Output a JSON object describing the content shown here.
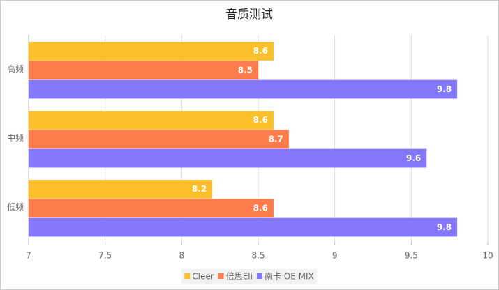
{
  "chart_data": {
    "type": "hbar",
    "title": "音质测试",
    "categories": [
      "高频",
      "中频",
      "低频"
    ],
    "series": [
      {
        "name": "Cleer",
        "color": "#fbbf2b",
        "values": [
          8.6,
          8.6,
          8.2
        ]
      },
      {
        "name": "倍思Eli",
        "color": "#ff7c4d",
        "values": [
          8.5,
          8.7,
          8.6
        ]
      },
      {
        "name": "南卡 OE MIX",
        "color": "#8477fb",
        "values": [
          9.8,
          9.6,
          9.8
        ]
      }
    ],
    "xlim": [
      7,
      10
    ],
    "xticks": [
      7,
      7.5,
      8,
      8.5,
      9,
      9.5,
      10
    ],
    "grid": true,
    "legend": "bottom"
  }
}
